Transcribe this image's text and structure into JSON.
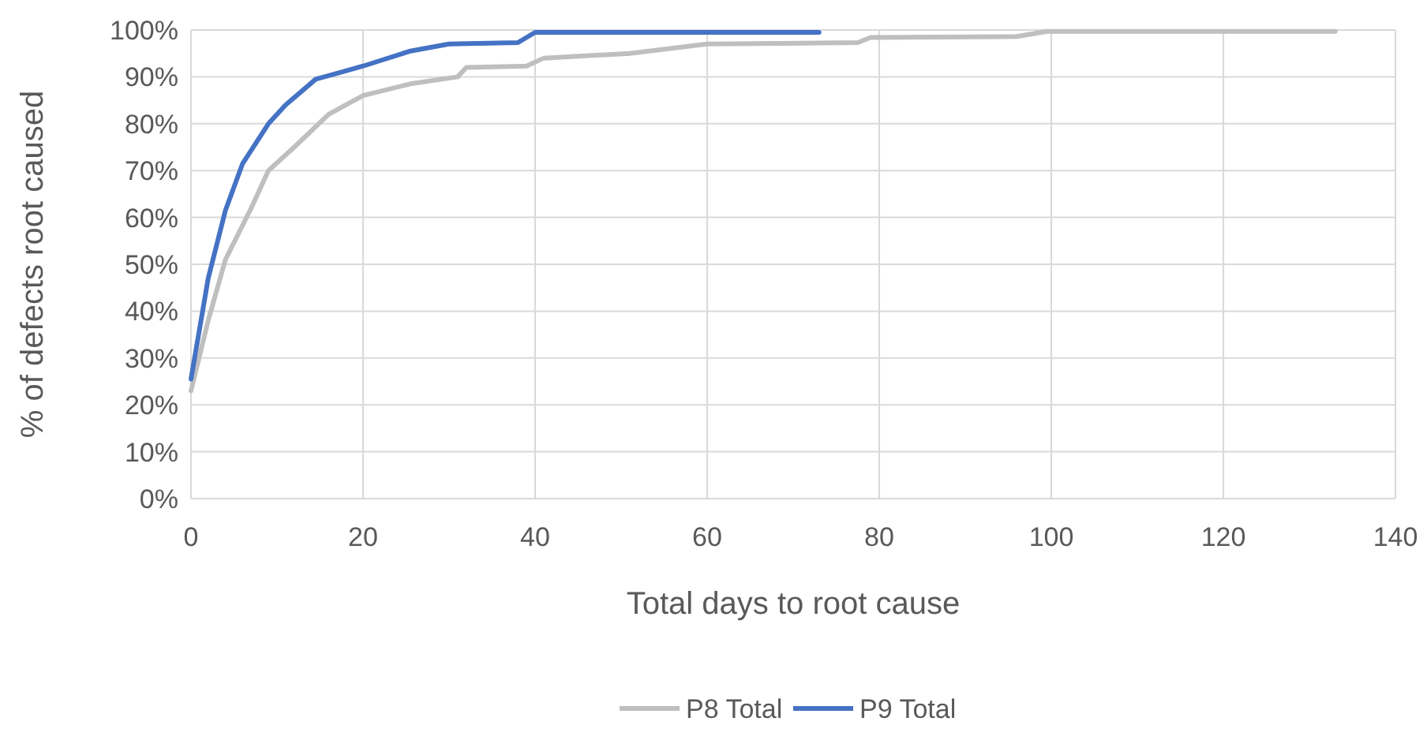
{
  "chart_data": {
    "type": "line",
    "xlabel": "Total days to root cause",
    "ylabel": "% of defects root caused",
    "xlim": [
      0,
      140
    ],
    "xticks": [
      0,
      20,
      40,
      60,
      80,
      100,
      120,
      140
    ],
    "ylim": [
      0,
      100
    ],
    "yticks": [
      {
        "value": 0,
        "label": "0%"
      },
      {
        "value": 10,
        "label": "10%"
      },
      {
        "value": 20,
        "label": "20%"
      },
      {
        "value": 30,
        "label": "30%"
      },
      {
        "value": 40,
        "label": "40%"
      },
      {
        "value": 50,
        "label": "50%"
      },
      {
        "value": 60,
        "label": "60%"
      },
      {
        "value": 70,
        "label": "70%"
      },
      {
        "value": 80,
        "label": "80%"
      },
      {
        "value": 90,
        "label": "90%"
      },
      {
        "value": 100,
        "label": "100%"
      }
    ],
    "grid": true,
    "legend": "bottom",
    "marker": "none",
    "line_style": "solid",
    "series": [
      {
        "name": "P8 Total",
        "color": "#bfbfbf",
        "x": [
          0,
          2,
          4,
          7,
          9,
          12,
          16,
          20,
          25.5,
          31,
          32,
          39,
          41,
          51,
          60,
          77.5,
          79,
          96,
          99.5,
          133
        ],
        "values": [
          23,
          38,
          51,
          62,
          70,
          75,
          82,
          86,
          88.5,
          90,
          92,
          92.3,
          94,
          95,
          97,
          97.3,
          98.4,
          98.6,
          99.7,
          99.7
        ]
      },
      {
        "name": "P9 Total",
        "color": "#4472c4",
        "x": [
          0,
          2,
          4,
          6,
          9,
          11,
          14.5,
          17.5,
          20,
          25.5,
          30,
          38,
          40,
          73
        ],
        "values": [
          25.5,
          47,
          61.5,
          71.5,
          80,
          84,
          89.5,
          91,
          92.3,
          95.5,
          97,
          97.3,
          99.5,
          99.5
        ]
      }
    ]
  }
}
